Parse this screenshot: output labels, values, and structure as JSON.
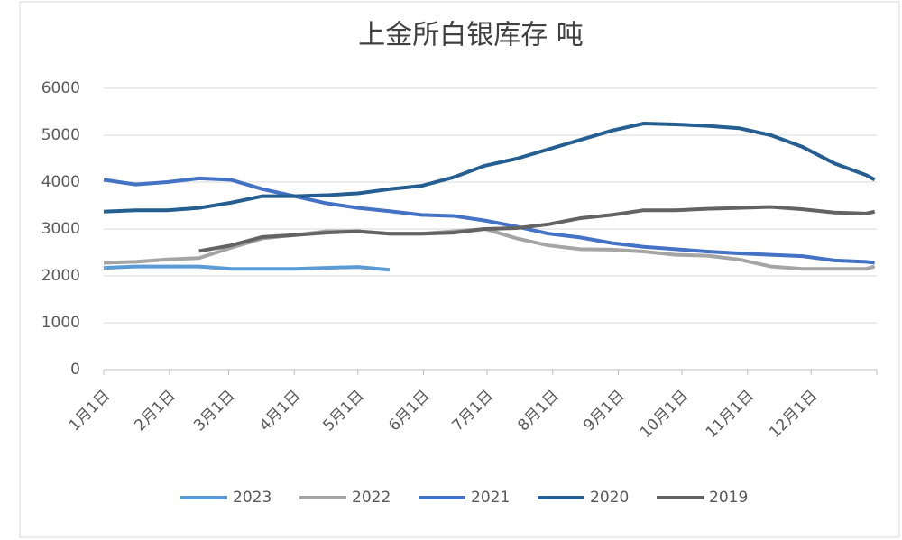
{
  "chart_data": {
    "type": "line",
    "title": "上金所白银库存 吨",
    "x": [
      0,
      15,
      30,
      45,
      60,
      75,
      90,
      105,
      120,
      135,
      150,
      165,
      180,
      195,
      210,
      225,
      240,
      255,
      270,
      285,
      300,
      315,
      330,
      345,
      360,
      364
    ],
    "xlim": [
      0,
      365
    ],
    "xticks": [
      {
        "value": 0,
        "label": "1月1日"
      },
      {
        "value": 31,
        "label": "2月1日"
      },
      {
        "value": 59,
        "label": "3月1日"
      },
      {
        "value": 90,
        "label": "4月1日"
      },
      {
        "value": 120,
        "label": "5月1日"
      },
      {
        "value": 151,
        "label": "6月1日"
      },
      {
        "value": 181,
        "label": "7月1日"
      },
      {
        "value": 212,
        "label": "8月1日"
      },
      {
        "value": 243,
        "label": "9月1日"
      },
      {
        "value": 273,
        "label": "10月1日"
      },
      {
        "value": 304,
        "label": "11月1日"
      },
      {
        "value": 334,
        "label": "12月1日"
      }
    ],
    "ylim": [
      0,
      6000
    ],
    "yticks": [
      0,
      1000,
      2000,
      3000,
      4000,
      5000,
      6000
    ],
    "grid": true,
    "legend": "bottom",
    "series": [
      {
        "name": "2023",
        "color": "#5b9bd5",
        "values": [
          2170,
          2200,
          2200,
          2200,
          2150,
          2150,
          2150,
          2170,
          2190,
          2130,
          null,
          null,
          null,
          null,
          null,
          null,
          null,
          null,
          null,
          null,
          null,
          null,
          null,
          null,
          null,
          null
        ]
      },
      {
        "name": "2022",
        "color": "#a5a5a5",
        "values": [
          2280,
          2300,
          2350,
          2380,
          2600,
          2800,
          2870,
          2950,
          2950,
          2900,
          2900,
          2950,
          3000,
          2800,
          2650,
          2570,
          2560,
          2520,
          2450,
          2430,
          2350,
          2200,
          2150,
          2150,
          2150,
          2200
        ]
      },
      {
        "name": "2021",
        "color": "#4472c4",
        "values": [
          4050,
          3950,
          4000,
          4080,
          4050,
          3850,
          3700,
          3550,
          3450,
          3380,
          3300,
          3280,
          3180,
          3050,
          2900,
          2820,
          2700,
          2620,
          2570,
          2520,
          2480,
          2450,
          2420,
          2330,
          2300,
          2280
        ]
      },
      {
        "name": "2020",
        "color": "#255e91",
        "values": [
          3370,
          3400,
          3400,
          3450,
          3560,
          3700,
          3700,
          3720,
          3760,
          3850,
          3920,
          4100,
          4350,
          4500,
          4700,
          4900,
          5100,
          5250,
          5230,
          5200,
          5150,
          5000,
          4750,
          4400,
          4150,
          4050
        ]
      },
      {
        "name": "2019",
        "color": "#636363",
        "values": [
          null,
          null,
          null,
          2530,
          2650,
          2830,
          2870,
          2920,
          2950,
          2900,
          2900,
          2920,
          3000,
          3020,
          3100,
          3230,
          3300,
          3400,
          3400,
          3430,
          3450,
          3470,
          3420,
          3350,
          3330,
          3370
        ]
      }
    ]
  }
}
